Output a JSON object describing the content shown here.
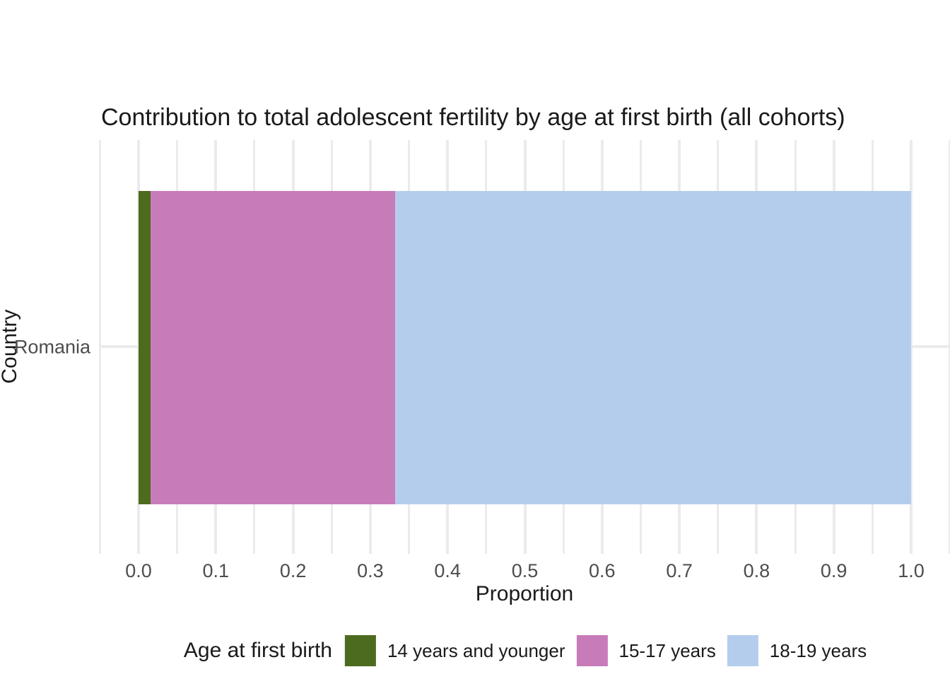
{
  "chart": {
    "title": "Contribution to total adolescent fertility by age at first birth (all cohorts)",
    "xlabel": "Proportion",
    "ylabel": "Country"
  },
  "chart_data": {
    "type": "bar",
    "orientation": "horizontal",
    "stacked": true,
    "title": "Contribution to total adolescent fertility by age at first birth (all cohorts)",
    "xlabel": "Proportion",
    "ylabel": "Country",
    "categories": [
      "Romania"
    ],
    "series": [
      {
        "name": "14 years and younger",
        "values": [
          0.016
        ],
        "color": "#4d6b1f"
      },
      {
        "name": "15-17 years",
        "values": [
          0.316
        ],
        "color": "#c77cb9"
      },
      {
        "name": "18-19 years",
        "values": [
          0.668
        ],
        "color": "#b5cdec"
      }
    ],
    "xlim": [
      -0.05,
      1.05
    ],
    "x_ticks": [
      0.0,
      0.1,
      0.2,
      0.3,
      0.4,
      0.5,
      0.6,
      0.7,
      0.8,
      0.9,
      1.0
    ],
    "x_tick_labels": [
      "0.0",
      "0.1",
      "0.2",
      "0.3",
      "0.4",
      "0.5",
      "0.6",
      "0.7",
      "0.8",
      "0.9",
      "1.0"
    ],
    "x_minor_ticks": [
      -0.05,
      0.05,
      0.15,
      0.25,
      0.35,
      0.45,
      0.55,
      0.65,
      0.75,
      0.85,
      0.95,
      1.05
    ],
    "grid": "vertical major+minor, horizontal major at category; no axis lines",
    "legend_position": "bottom"
  },
  "legend": {
    "title": "Age at first birth",
    "items": [
      {
        "label": "14 years and younger",
        "color": "#4d6b1f"
      },
      {
        "label": "15-17 years",
        "color": "#c77cb9"
      },
      {
        "label": "18-19 years",
        "color": "#b5cdec"
      }
    ]
  },
  "colors": {
    "background": "#ffffff",
    "gridline": "#ebebeb",
    "tick_text": "#4d4d4d",
    "title_text": "#1a1a1a"
  }
}
